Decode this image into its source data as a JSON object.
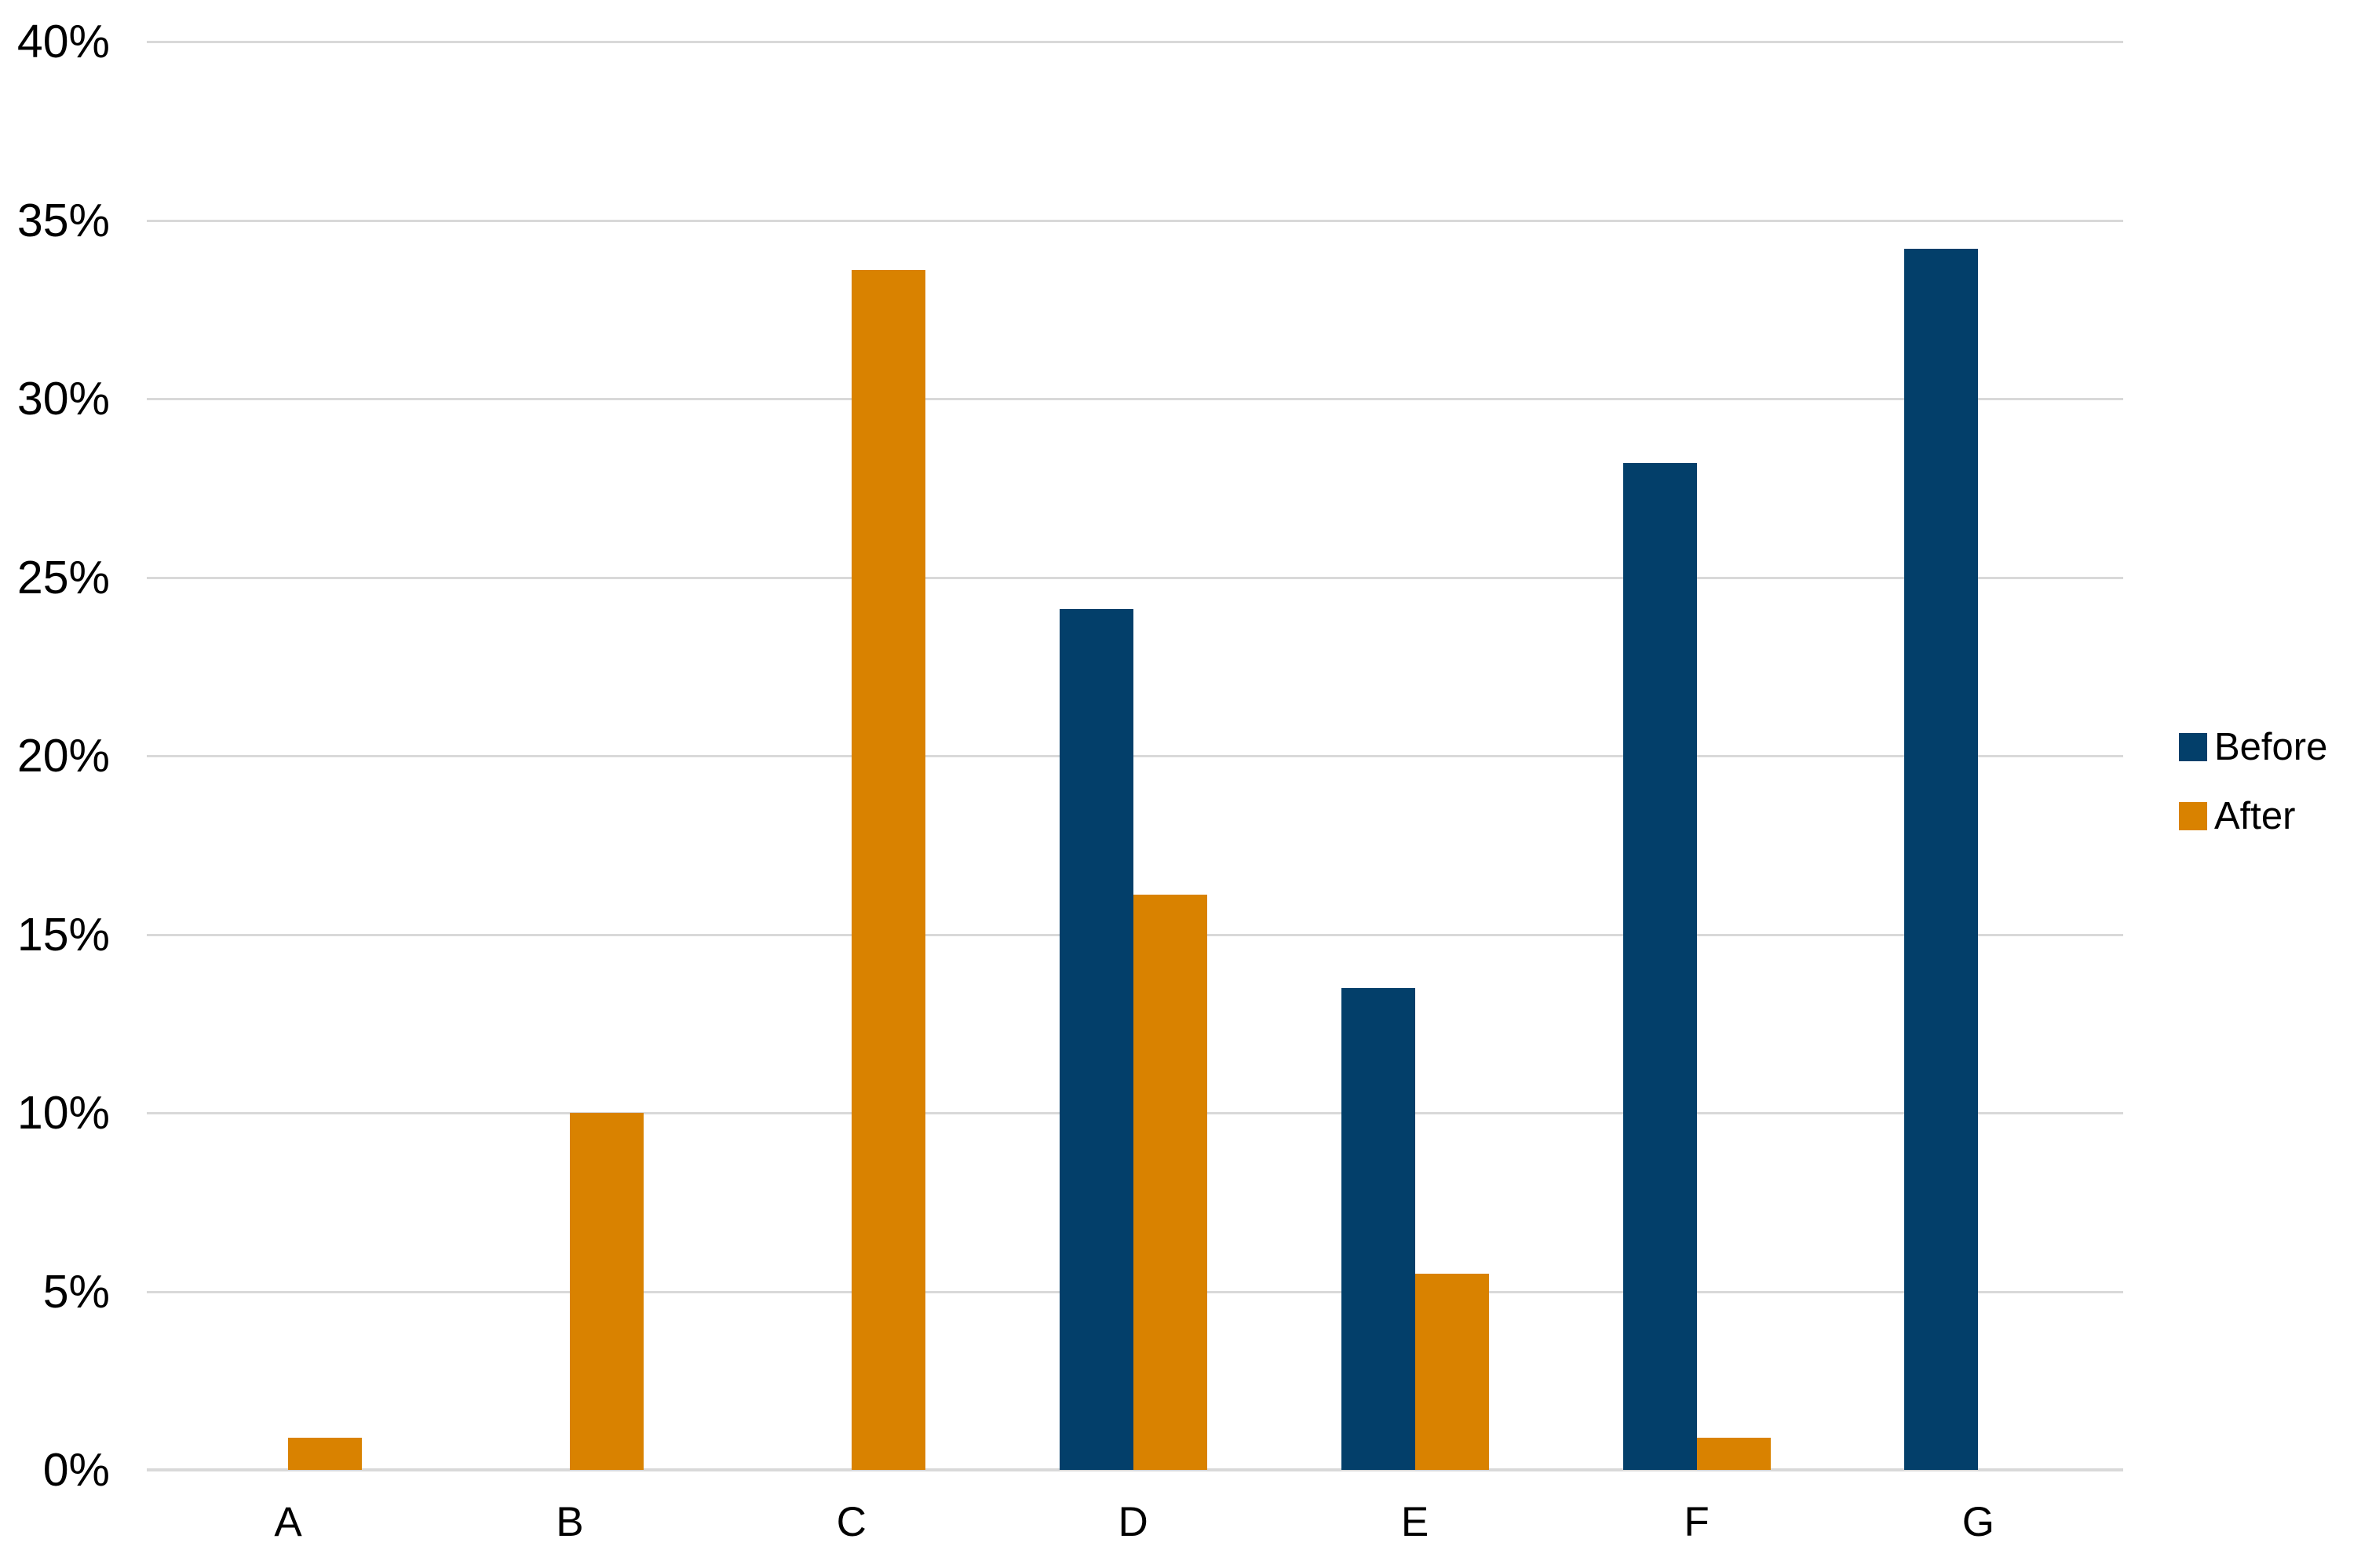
{
  "chart_data": {
    "type": "bar",
    "title": "",
    "xlabel": "",
    "ylabel": "",
    "categories": [
      "A",
      "B",
      "C",
      "D",
      "E",
      "F",
      "G"
    ],
    "series": [
      {
        "name": "Before",
        "color": "#033F6A",
        "values": [
          0,
          0,
          0,
          24.1,
          13.5,
          28.2,
          34.2
        ]
      },
      {
        "name": "After",
        "color": "#D98200",
        "values": [
          0.9,
          10.0,
          33.6,
          16.1,
          5.5,
          0.9,
          0
        ]
      }
    ],
    "ylim": [
      0,
      40
    ],
    "ytick_step": 5,
    "ytick_labels": [
      "0%",
      "5%",
      "10%",
      "15%",
      "20%",
      "25%",
      "30%",
      "35%",
      "40%"
    ],
    "grid": "horizontal",
    "gridline_color": "#D9D9D9",
    "axis_line_color": "#D9D9D9",
    "background_color": "#FFFFFF",
    "text_color": "#000000",
    "legend_position": "middle-right"
  }
}
